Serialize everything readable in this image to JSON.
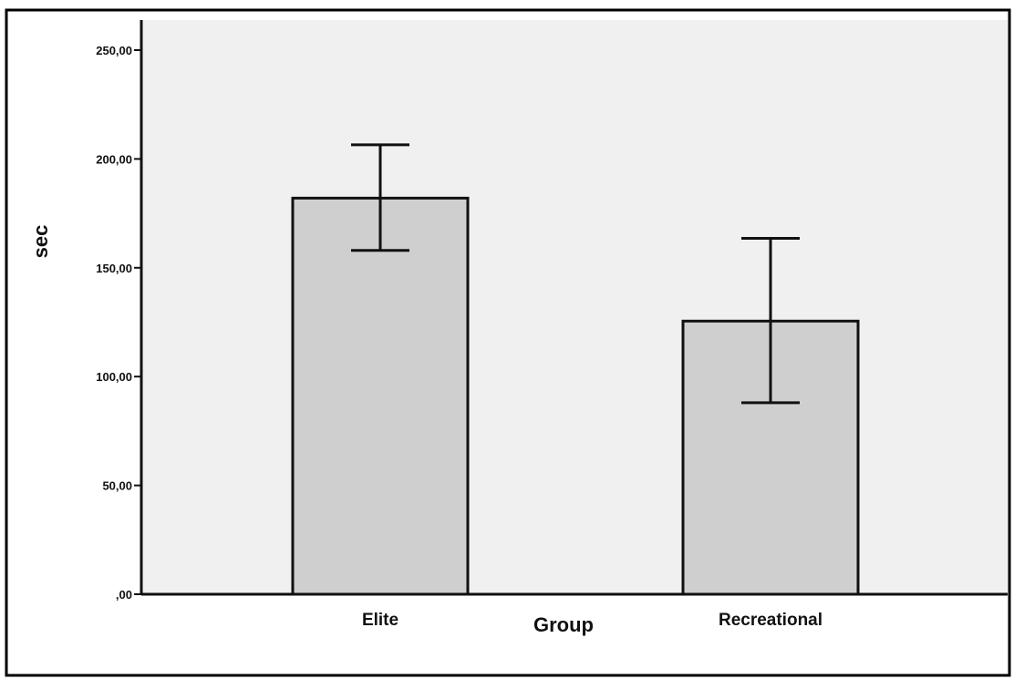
{
  "chart_data": {
    "type": "bar",
    "title": "",
    "xlabel": "Group",
    "ylabel": "sec",
    "categories": [
      "Elite",
      "Recreational"
    ],
    "values": [
      182.0,
      125.5
    ],
    "error_bars": [
      {
        "lower": 158.0,
        "upper": 206.5
      },
      {
        "lower": 88.0,
        "upper": 163.5
      }
    ],
    "ylim": [
      0,
      260
    ],
    "yticks": [
      0,
      50,
      100,
      150,
      200,
      250
    ],
    "ytick_labels": [
      ",00",
      "50,00",
      "100,00",
      "150,00",
      "200,00",
      "250,00"
    ],
    "grid": false,
    "legend": "none",
    "colors": {
      "plot_background": "#f0f0f0",
      "bar_fill": "#cfcfcf",
      "bar_stroke": "#111111",
      "axis": "#111111",
      "frame": "#000000"
    }
  }
}
